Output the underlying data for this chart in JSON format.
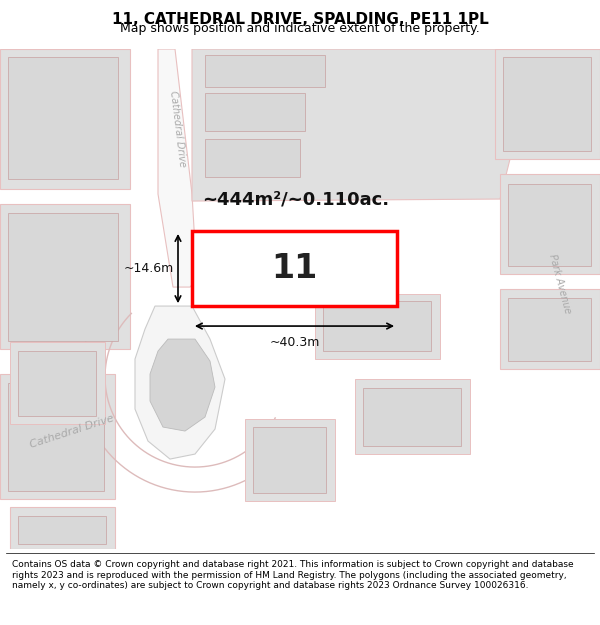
{
  "title": "11, CATHEDRAL DRIVE, SPALDING, PE11 1PL",
  "subtitle": "Map shows position and indicative extent of the property.",
  "footer": "Contains OS data © Crown copyright and database right 2021. This information is subject to Crown copyright and database rights 2023 and is reproduced with the permission of HM Land Registry. The polygons (including the associated geometry, namely x, y co-ordinates) are subject to Crown copyright and database rights 2023 Ordnance Survey 100026316.",
  "map_bg": "#ffffff",
  "road_color": "#e8c0c0",
  "building_fill": "#e0e0e0",
  "building_edge": "#c8a0a0",
  "highlight_fill": "#ffffff",
  "highlight_edge": "#ff0000",
  "highlight_lw": 2.5,
  "area_label": "~444m²/~0.110ac.",
  "width_label": "~40.3m",
  "height_label": "~14.6m",
  "number_label": "11",
  "cathedral_drive_upper": "Cathedral Drive",
  "cathedral_drive_lower": "Cathedral Drive",
  "park_avenue_label": "Park Avenue",
  "title_fontsize": 11,
  "subtitle_fontsize": 9,
  "footer_fontsize": 6.5
}
